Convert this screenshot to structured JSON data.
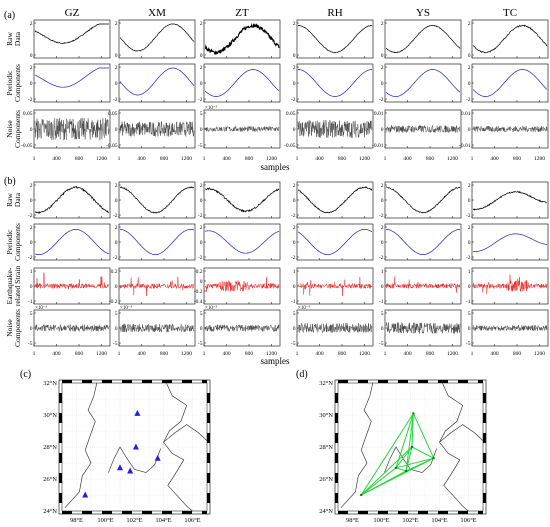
{
  "panel_labels": [
    "(a)",
    "(b)",
    "(c)",
    "(d)"
  ],
  "x_axis_title": "samples",
  "x_ticks": [
    1,
    400,
    800,
    1200
  ],
  "stations": [
    "GZ",
    "XM",
    "ZT",
    "RH",
    "YS",
    "TC"
  ],
  "row_labels": {
    "raw": [
      "Raw",
      "Data"
    ],
    "periodic": [
      "Periodic",
      "Components"
    ],
    "noise": [
      "Noise",
      "Components"
    ],
    "quake": [
      "Earthquake-",
      "related Strain"
    ]
  },
  "colors": {
    "raw": "#000000",
    "periodic": "#1f1fcf",
    "quake": "#e8201e",
    "noise": "#404040",
    "map_line": "#26d43a",
    "station": "#1b22e0"
  },
  "chart_data": [
    {
      "type": "line",
      "panel": "(a)",
      "x_range": [
        1,
        1350
      ],
      "xlabel": "samples",
      "xticks": [
        1,
        400,
        800,
        1200
      ],
      "rows": [
        {
          "name": "Raw Data",
          "yticks": [
            [
              "0",
              "2"
            ],
            [
              "0",
              "2"
            ],
            [
              "0",
              "2"
            ],
            [
              "0",
              "2"
            ],
            [
              "0",
              "2"
            ],
            [
              "0",
              "2"
            ]
          ]
        },
        {
          "name": "Periodic Components",
          "yticks": [
            [
              "-2",
              "0",
              "2"
            ],
            [
              "-2",
              "0",
              "2"
            ],
            [
              "-2",
              "0",
              "2"
            ],
            [
              "-2",
              "0",
              "2"
            ],
            [
              "-2",
              "0",
              "2"
            ],
            [
              "-2",
              "0",
              "2"
            ]
          ]
        },
        {
          "name": "Noise Components",
          "yticks": [
            [
              "-0.05",
              "0",
              "0.05"
            ],
            [
              "-0.05",
              "0",
              "0.05"
            ],
            [
              "-5",
              "0",
              "5"
            ],
            [
              "-0.05",
              "0",
              "0.05"
            ],
            [
              "-0.01",
              "0",
              "0.01"
            ],
            [
              "-0.01",
              "0",
              "0.01"
            ]
          ],
          "exponents": [
            "",
            "",
            "×10⁻³",
            "",
            "",
            ""
          ]
        }
      ]
    },
    {
      "type": "line",
      "panel": "(b)",
      "x_range": [
        1,
        1350
      ],
      "xlabel": "samples",
      "xticks": [
        1,
        400,
        800,
        1200
      ],
      "rows": [
        {
          "name": "Raw Data",
          "yticks": [
            [
              "-2",
              "0",
              "2"
            ],
            [
              "-2",
              "0",
              "2"
            ],
            [
              "-2",
              "0",
              "2"
            ],
            [
              "-2",
              "0",
              "2"
            ],
            [
              "-2",
              "0",
              "2"
            ],
            [
              "-2",
              "0",
              "2"
            ]
          ]
        },
        {
          "name": "Periodic Components",
          "yticks": [
            [
              "-2",
              "0",
              "2"
            ],
            [
              "-2",
              "0",
              "2"
            ],
            [
              "-2",
              "0",
              "2"
            ],
            [
              "-2",
              "0",
              "2"
            ],
            [
              "-2",
              "0",
              "2"
            ],
            [
              "-2",
              "0",
              "2"
            ]
          ]
        },
        {
          "name": "Earthquake-related Strain",
          "yticks": [
            [
              "-1",
              "0",
              "1"
            ],
            [
              "-0.2",
              "0",
              "0.2"
            ],
            [
              "-0.4",
              "-0.2",
              "0",
              "0.2"
            ],
            [
              "-1",
              "0",
              "1"
            ],
            [
              "-1",
              "0",
              "1"
            ],
            [
              "-1",
              "0",
              "1"
            ]
          ]
        },
        {
          "name": "Noise Components",
          "yticks": [
            [
              "-5",
              "0",
              "5"
            ],
            [
              "-5",
              "0",
              "5"
            ],
            [
              "-5",
              "0",
              "5"
            ],
            [
              "-5",
              "0",
              "5"
            ],
            [
              "-5",
              "0",
              "5"
            ],
            [
              "-5",
              "0",
              "5"
            ]
          ],
          "exponents": [
            "×10⁻³",
            "×10⁻³",
            "×10⁻³",
            "×10⁻³",
            "",
            ""
          ]
        }
      ]
    },
    {
      "type": "scatter",
      "panel": "(c)",
      "lon_ticks": [
        "98°E",
        "100°E",
        "102°E",
        "104°E",
        "106°E"
      ],
      "lat_ticks": [
        "24°N",
        "26°N",
        "28°N",
        "30°N",
        "32°N"
      ],
      "xlim": [
        97,
        107
      ],
      "ylim": [
        24,
        32
      ],
      "points": [
        {
          "lon": 98.6,
          "lat": 25.0
        },
        {
          "lon": 101.0,
          "lat": 26.7
        },
        {
          "lon": 101.7,
          "lat": 26.5
        },
        {
          "lon": 102.1,
          "lat": 28.0
        },
        {
          "lon": 102.2,
          "lat": 30.1
        },
        {
          "lon": 103.6,
          "lat": 27.3
        }
      ]
    },
    {
      "type": "network",
      "panel": "(d)",
      "lon_ticks": [
        "98°E",
        "100°E",
        "102°E",
        "104°E",
        "106°E"
      ],
      "lat_ticks": [
        "24°N",
        "26°N",
        "28°N",
        "30°N",
        "32°N"
      ],
      "xlim": [
        97,
        107
      ],
      "ylim": [
        24,
        32
      ],
      "nodes": [
        {
          "lon": 98.6,
          "lat": 25.0
        },
        {
          "lon": 101.0,
          "lat": 26.7
        },
        {
          "lon": 101.7,
          "lat": 26.5
        },
        {
          "lon": 102.1,
          "lat": 28.0
        },
        {
          "lon": 102.2,
          "lat": 30.1
        },
        {
          "lon": 103.6,
          "lat": 27.3
        }
      ],
      "edges": [
        [
          0,
          1
        ],
        [
          0,
          2
        ],
        [
          0,
          3
        ],
        [
          0,
          4
        ],
        [
          0,
          5
        ],
        [
          1,
          2
        ],
        [
          1,
          3
        ],
        [
          1,
          4
        ],
        [
          1,
          5
        ],
        [
          2,
          3
        ],
        [
          2,
          4
        ],
        [
          2,
          5
        ],
        [
          3,
          4
        ],
        [
          3,
          5
        ],
        [
          4,
          5
        ]
      ]
    }
  ]
}
